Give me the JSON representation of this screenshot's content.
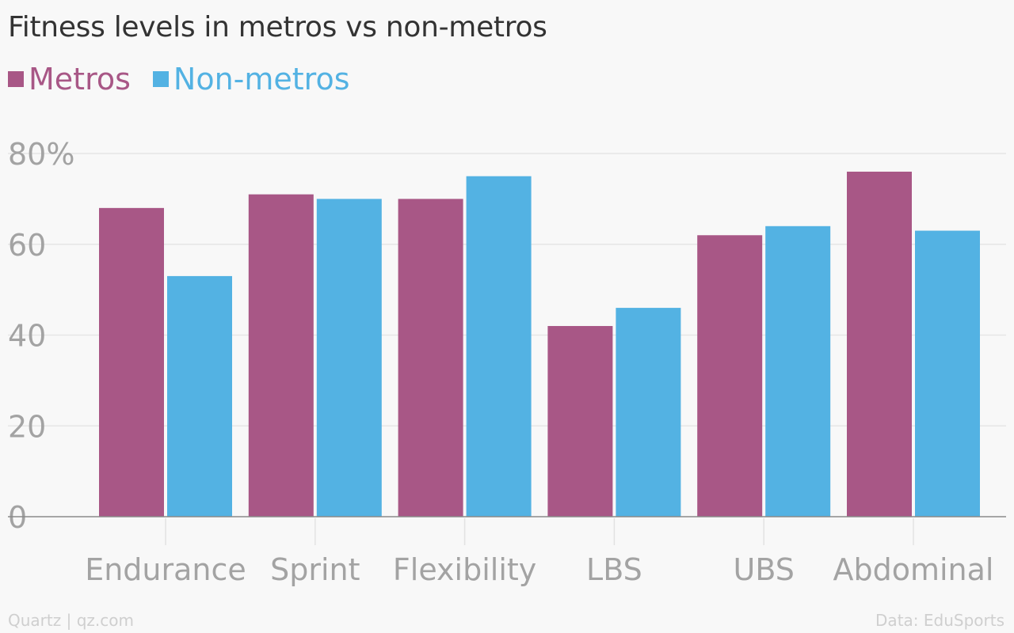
{
  "chart_data": {
    "type": "bar",
    "title": "Fitness levels in metros vs non-metros",
    "categories": [
      "Endurance",
      "Sprint",
      "Flexibility",
      "LBS",
      "UBS",
      "Abdominal"
    ],
    "series": [
      {
        "name": "Metros",
        "color": "#a85786",
        "values": [
          68,
          71,
          70,
          42,
          62,
          76
        ]
      },
      {
        "name": "Non-metros",
        "color": "#53b2e3",
        "values": [
          53,
          70,
          75,
          46,
          64,
          63
        ]
      }
    ],
    "ylim": [
      0,
      80
    ],
    "yticks": [
      {
        "value": 0,
        "label": "0"
      },
      {
        "value": 20,
        "label": "20"
      },
      {
        "value": 40,
        "label": "40"
      },
      {
        "value": 60,
        "label": "60"
      },
      {
        "value": 80,
        "label": "80%"
      }
    ],
    "xlabel": "",
    "ylabel": "",
    "grid": true,
    "legend_placement": "top-left"
  },
  "footer": {
    "source_left": "Quartz | qz.com",
    "source_right": "Data: EduSports"
  }
}
